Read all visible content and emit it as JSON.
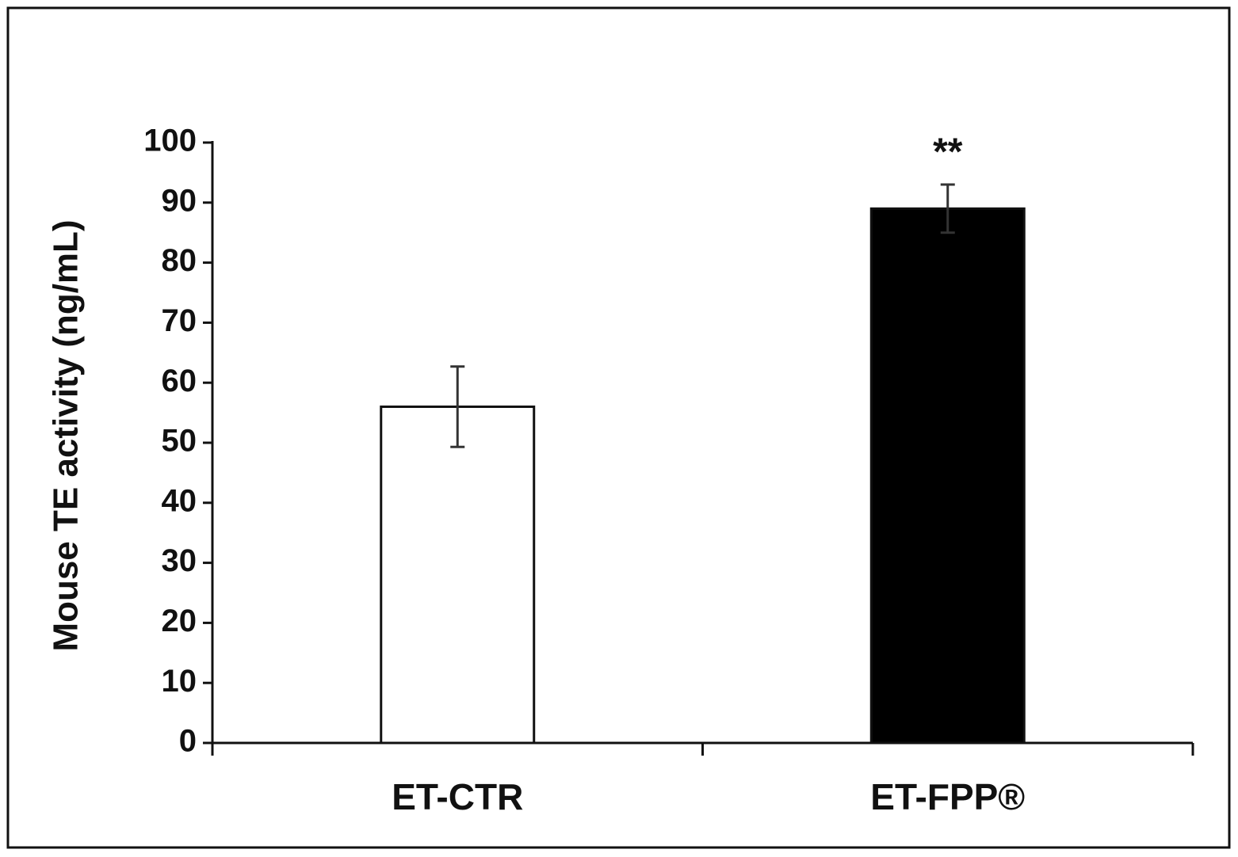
{
  "chart_data": {
    "type": "bar",
    "y_label": "Mouse TE activity (ng/mL)",
    "categories": [
      "ET-CTR",
      "ET-FPP®"
    ],
    "values": [
      56,
      89
    ],
    "errors": [
      6.7,
      4
    ],
    "colors": [
      "#ffffff",
      "#000000"
    ],
    "annotation": "**",
    "ylim": [
      0,
      100
    ],
    "yticks": [
      0,
      10,
      20,
      30,
      40,
      50,
      60,
      70,
      80,
      90,
      100
    ],
    "grid": false
  }
}
